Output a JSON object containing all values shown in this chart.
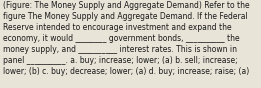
{
  "lines": [
    "(Figure: The Money Supply and Aggregate Demand) Refer to the",
    "figure The Money Supply and Aggregate Demand. If the Federal",
    "Reserve intended to encourage investment and expand the",
    "economy, it would ________ government bonds, __________ the",
    "money supply, and __________ interest rates. This is shown in",
    "panel __________. a. buy; increase; lower; (a) b. sell; increase;",
    "lower; (b) c. buy; decrease; lower; (a) d. buy; increase; raise; (a)"
  ],
  "background_color": "#e8e4d8",
  "text_color": "#1a1a1a",
  "font_size": 5.5,
  "fig_width": 2.61,
  "fig_height": 0.88,
  "dpi": 100
}
